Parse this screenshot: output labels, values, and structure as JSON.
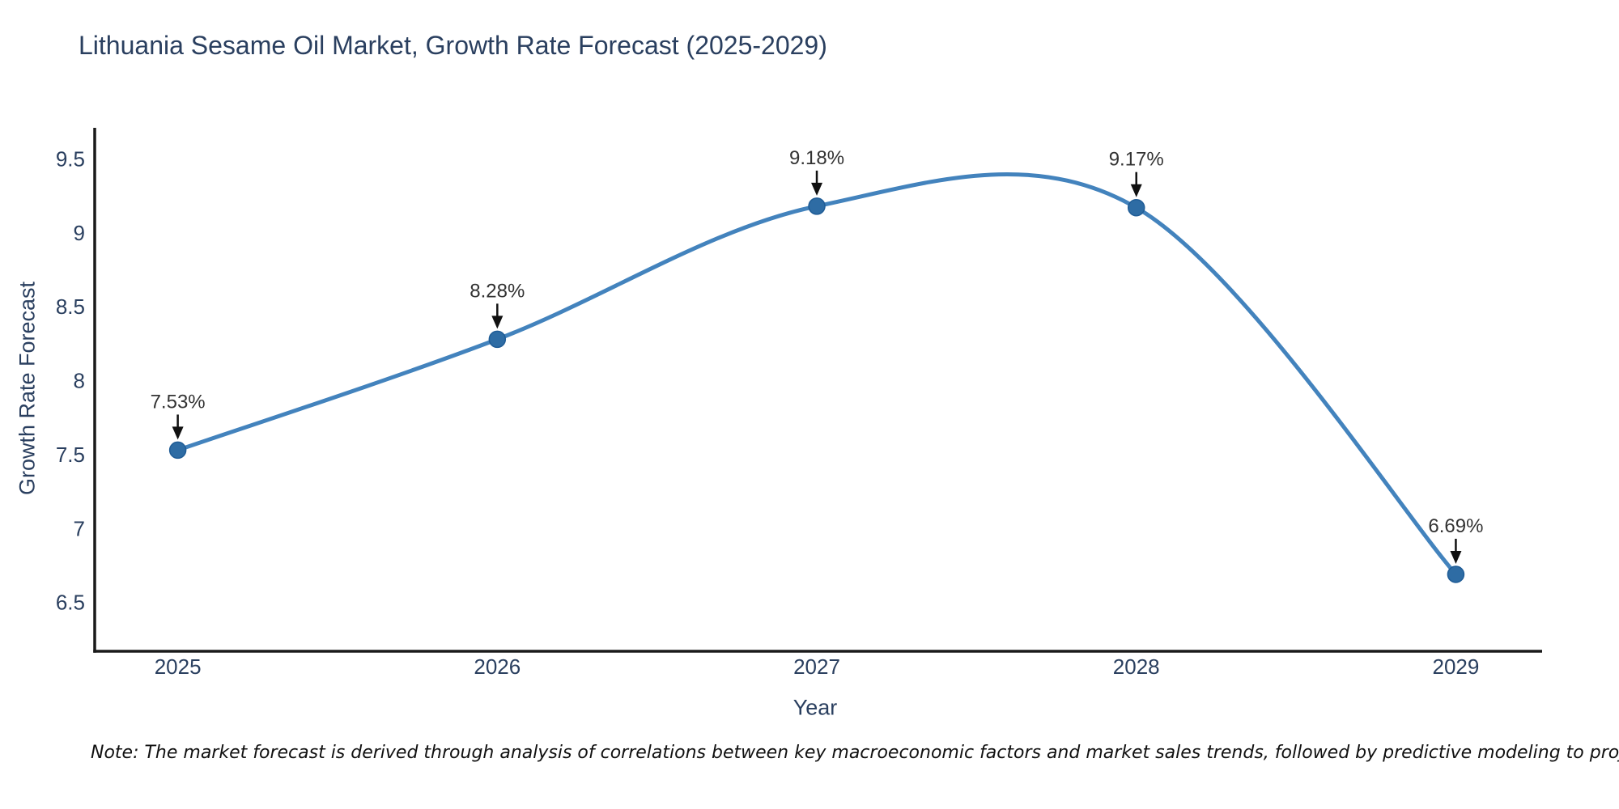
{
  "page": {
    "title": "Lithuania Sesame Oil Market, Growth Rate Forecast (2025-2029)",
    "note": "Note: The market forecast is derived through analysis of correlations between key macroeconomic factors and market sales trends, followed by predictive modeling to project future sales"
  },
  "chart_data": {
    "type": "line",
    "title": "Lithuania Sesame Oil Market, Growth Rate Forecast (2025-2029)",
    "xlabel": "Year",
    "ylabel": "Growth Rate Forecast",
    "x": [
      2025,
      2026,
      2027,
      2028,
      2029
    ],
    "y": [
      7.53,
      8.28,
      9.18,
      9.17,
      6.69
    ],
    "point_labels": [
      "7.53%",
      "8.28%",
      "9.18%",
      "9.17%",
      "6.69%"
    ],
    "x_tick_labels": [
      "2025",
      "2026",
      "2027",
      "2028",
      "2029"
    ],
    "y_ticks": [
      6.5,
      7,
      7.5,
      8,
      8.5,
      9,
      9.5
    ],
    "y_tick_labels": [
      "6.5",
      "7",
      "7.5",
      "8",
      "8.5",
      "9",
      "9.5"
    ],
    "xlim": [
      2024.74,
      2029.27
    ],
    "ylim": [
      6.17,
      9.71
    ],
    "line_shape": "spline",
    "grid": false,
    "legend_position": "none",
    "colors": {
      "line": "#4383bd",
      "marker": "#2e6ca4",
      "marker_edge": "#1f5c96",
      "annotation_text": "#333333",
      "arrow": "#111111",
      "axis_line": "#1a1a1a",
      "tick_text": "#2a3f5f",
      "title_text": "#2a3f5f"
    }
  }
}
